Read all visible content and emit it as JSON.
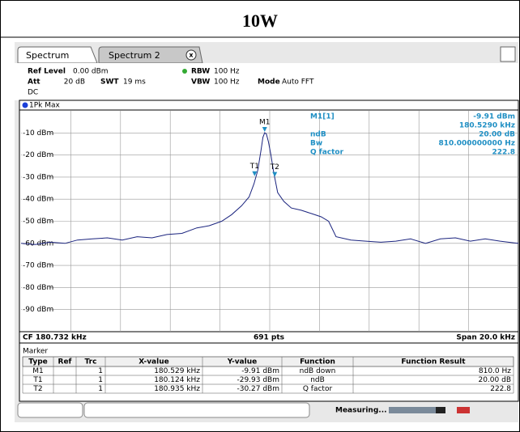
{
  "header": {
    "title": "10W"
  },
  "tabs": [
    "Spectrum",
    "Spectrum 2"
  ],
  "settings": {
    "ref_level_label": "Ref Level",
    "ref_level": "0.00 dBm",
    "att_label": "Att",
    "att": "20 dB",
    "swt_label": "SWT",
    "swt": "19 ms",
    "rbw_label": "RBW",
    "rbw": "100 Hz",
    "vbw_label": "VBW",
    "vbw": "100 Hz",
    "mode_label": "Mode",
    "mode": "Auto FFT",
    "coupling": "DC"
  },
  "chart_data": {
    "type": "line",
    "trace_name": "1Pk Max",
    "color": "#1a237e",
    "xlim": [
      170.732,
      190.732
    ],
    "ylim": [
      -100,
      0
    ],
    "yticks": [
      {
        "value": -10,
        "label": "-10 dBm"
      },
      {
        "value": -20,
        "label": "-20 dBm"
      },
      {
        "value": -30,
        "label": "-30 dBm"
      },
      {
        "value": -40,
        "label": "-40 dBm"
      },
      {
        "value": -50,
        "label": "-50 dBm"
      },
      {
        "value": -60,
        "label": "-60 dBm"
      },
      {
        "value": -70,
        "label": "-70 dBm"
      },
      {
        "value": -80,
        "label": "-80 dBm"
      },
      {
        "value": -90,
        "label": "-90 dBm"
      }
    ],
    "grid": true,
    "x": [
      170.732,
      171.3,
      171.9,
      172.5,
      173.0,
      173.6,
      174.2,
      174.8,
      175.4,
      176.0,
      176.6,
      177.2,
      177.8,
      178.3,
      178.8,
      179.2,
      179.6,
      179.9,
      180.1,
      180.25,
      180.38,
      180.46,
      180.529,
      180.6,
      180.68,
      180.78,
      180.88,
      180.935,
      181.05,
      181.3,
      181.6,
      182.0,
      182.4,
      182.8,
      183.1,
      183.4,
      184.0,
      184.6,
      185.2,
      185.8,
      186.4,
      187.0,
      187.6,
      188.2,
      188.8,
      189.4,
      190.0,
      190.732
    ],
    "values": [
      -60,
      -60.5,
      -59.5,
      -60,
      -58.5,
      -58,
      -57.5,
      -58.5,
      -57,
      -57.5,
      -56,
      -55.5,
      -53,
      -52,
      -50,
      -47,
      -43,
      -39,
      -33,
      -27,
      -18,
      -12,
      -9.91,
      -10.5,
      -14,
      -20,
      -27,
      -30.27,
      -37,
      -41,
      -44,
      -45,
      -46.5,
      -48,
      -50,
      -57,
      -58.5,
      -59,
      -59.5,
      -59,
      -58,
      -60,
      -58,
      -57.5,
      -59,
      -58,
      -59,
      -60
    ],
    "markers": [
      {
        "name": "M1",
        "x": 180.529,
        "y": -9.91
      },
      {
        "name": "T1",
        "x": 180.124,
        "y": -29.93
      },
      {
        "name": "T2",
        "x": 180.935,
        "y": -30.27
      }
    ],
    "readout": [
      "M1[1]",
      "-9.91 dBm",
      "180.5290 kHz",
      "ndB",
      "20.00 dB",
      "Bw",
      "810.000000000 Hz",
      "Q factor",
      "222.8"
    ],
    "footer": [
      "CF 180.732 kHz",
      "691 pts",
      "Span 20.0 kHz"
    ]
  },
  "marker_table": {
    "title": "Marker",
    "columns": [
      "Type",
      "Ref",
      "Trc",
      "X-value",
      "Y-value",
      "Function",
      "Function Result"
    ],
    "rows": [
      [
        "M1",
        "",
        "1",
        "180.529 kHz",
        "-9.91 dBm",
        "ndB down",
        "810.0 Hz"
      ],
      [
        "T1",
        "",
        "1",
        "180.124 kHz",
        "-29.93 dBm",
        "ndB",
        "20.00 dB"
      ],
      [
        "T2",
        "",
        "1",
        "180.935 kHz",
        "-30.27 dBm",
        "Q factor",
        "222.8"
      ]
    ]
  },
  "status": "Measuring..."
}
